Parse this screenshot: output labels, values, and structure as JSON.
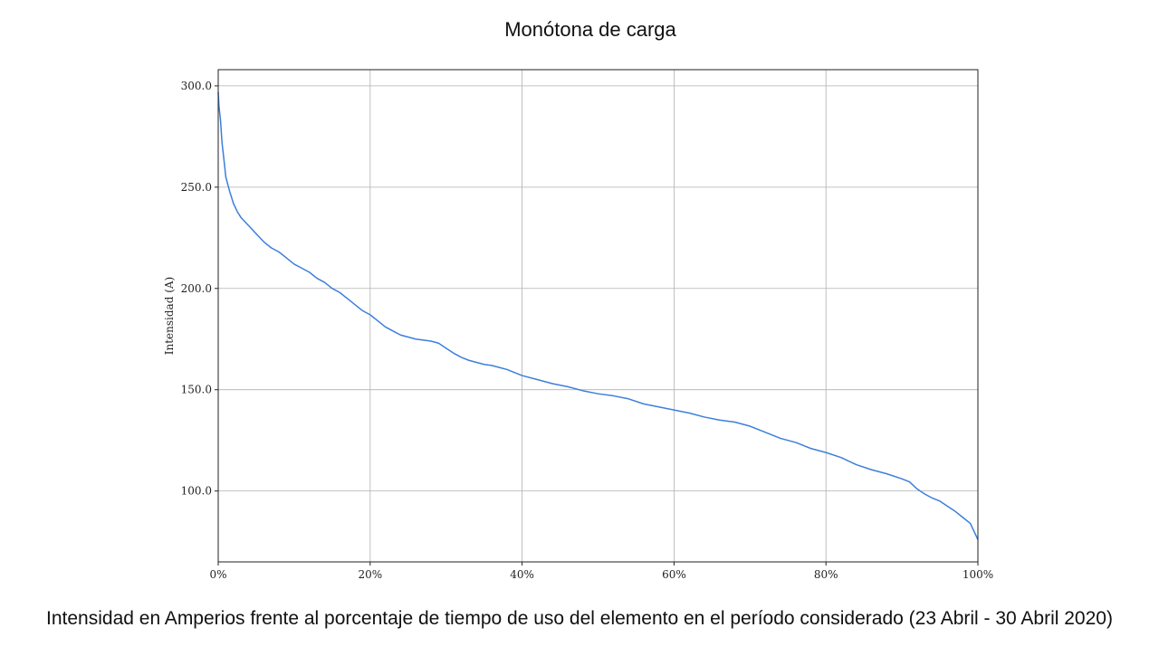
{
  "slide": {
    "title": "Monótona de carga",
    "caption": "Intensidad en Amperios frente al porcentaje de tiempo de uso del elemento en el período considerado (23 Abril - 30 Abril 2020)"
  },
  "chart_data": {
    "type": "line",
    "title": "",
    "xlabel": "",
    "ylabel": "Intensidad (A)",
    "xlim": [
      0,
      100
    ],
    "ylim": [
      65,
      308
    ],
    "x_ticks": [
      0,
      20,
      40,
      60,
      80,
      100
    ],
    "x_tick_labels": [
      "0%",
      "20%",
      "40%",
      "60%",
      "80%",
      "100%"
    ],
    "y_ticks": [
      100,
      150,
      200,
      250,
      300
    ],
    "y_tick_labels": [
      "100.0",
      "150.0",
      "200.0",
      "250.0",
      "300.0"
    ],
    "grid": true,
    "legend": "none",
    "series": [
      {
        "color": "#3c7fdc",
        "x": [
          0,
          0.1,
          0.3,
          0.5,
          0.8,
          1,
          1.5,
          2,
          2.5,
          3,
          4,
          5,
          6,
          7,
          8,
          9,
          10,
          11,
          12,
          13,
          14,
          15,
          16,
          17,
          18,
          19,
          20,
          21,
          22,
          23,
          24,
          25,
          26,
          27,
          28,
          29,
          30,
          31,
          32,
          33,
          34,
          35,
          36,
          37,
          38,
          39,
          40,
          42,
          44,
          46,
          48,
          50,
          52,
          54,
          56,
          58,
          60,
          62,
          64,
          66,
          68,
          70,
          72,
          74,
          76,
          78,
          80,
          82,
          84,
          86,
          88,
          90,
          91,
          92,
          93,
          94,
          95,
          96,
          97,
          98,
          99,
          99.5,
          100
        ],
        "values": [
          297,
          290,
          283,
          272,
          262,
          255,
          248,
          242,
          238,
          235,
          231,
          227,
          223,
          220,
          218,
          215,
          212,
          210,
          208,
          205,
          203,
          200,
          198,
          195,
          192,
          189,
          187,
          184,
          181,
          179,
          177,
          176,
          175,
          174.5,
          174,
          173,
          170.5,
          168,
          166,
          164.5,
          163.5,
          162.5,
          162,
          161,
          160,
          158.5,
          157,
          155,
          153,
          151.5,
          149.5,
          148,
          147,
          145.5,
          143,
          141.5,
          140,
          138.5,
          136.5,
          135,
          134,
          132,
          129,
          126,
          124,
          121,
          119,
          116.5,
          113,
          110.5,
          108.5,
          106,
          104.5,
          101,
          98.5,
          96.5,
          95,
          92.5,
          90,
          87,
          84,
          80,
          76
        ]
      }
    ]
  }
}
